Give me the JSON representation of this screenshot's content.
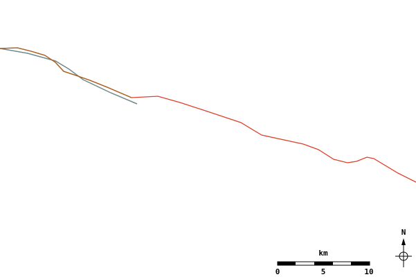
{
  "north_label": "N",
  "scale": {
    "unit": "km",
    "labels": [
      "0",
      "5",
      "10"
    ]
  }
}
